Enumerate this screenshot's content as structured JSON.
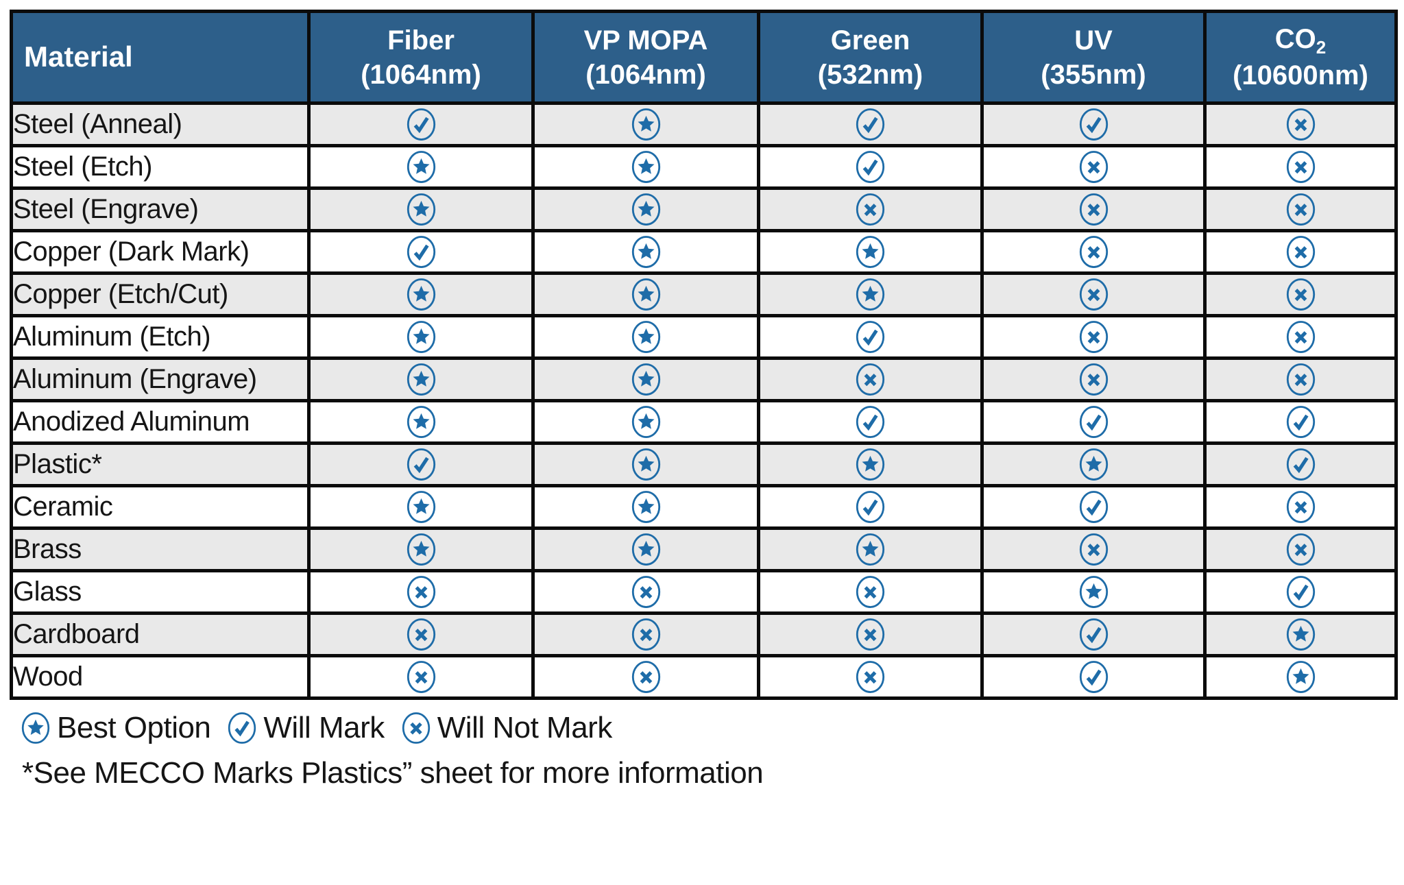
{
  "colors": {
    "header_bg": "#2D5F8A",
    "icon_blue": "#1E6CA8",
    "row_alt_bg": "#E9E9E9",
    "row_bg": "#FFFFFF",
    "border": "#0B0B0B",
    "header_text": "#FFFFFF",
    "body_text": "#151515"
  },
  "table": {
    "material_header": "Material",
    "columns": [
      {
        "id": "fiber",
        "name": "Fiber",
        "subscript": "",
        "wavelength": "(1064nm)"
      },
      {
        "id": "vp-mopa",
        "name": "VP MOPA",
        "subscript": "",
        "wavelength": "(1064nm)"
      },
      {
        "id": "green",
        "name": "Green",
        "subscript": "",
        "wavelength": "(532nm)"
      },
      {
        "id": "uv",
        "name": "UV",
        "subscript": "",
        "wavelength": "(355nm)"
      },
      {
        "id": "co2",
        "name": "CO",
        "subscript": "2",
        "wavelength": "(10600nm)"
      }
    ],
    "rows": [
      {
        "material": "Steel (Anneal)",
        "marks": [
          "will-mark",
          "best-option",
          "will-mark",
          "will-mark",
          "will-not-mark"
        ]
      },
      {
        "material": "Steel (Etch)",
        "marks": [
          "best-option",
          "best-option",
          "will-mark",
          "will-not-mark",
          "will-not-mark"
        ]
      },
      {
        "material": "Steel (Engrave)",
        "marks": [
          "best-option",
          "best-option",
          "will-not-mark",
          "will-not-mark",
          "will-not-mark"
        ]
      },
      {
        "material": "Copper (Dark Mark)",
        "marks": [
          "will-mark",
          "best-option",
          "best-option",
          "will-not-mark",
          "will-not-mark"
        ]
      },
      {
        "material": "Copper (Etch/Cut)",
        "marks": [
          "best-option",
          "best-option",
          "best-option",
          "will-not-mark",
          "will-not-mark"
        ]
      },
      {
        "material": "Aluminum (Etch)",
        "marks": [
          "best-option",
          "best-option",
          "will-mark",
          "will-not-mark",
          "will-not-mark"
        ]
      },
      {
        "material": "Aluminum (Engrave)",
        "marks": [
          "best-option",
          "best-option",
          "will-not-mark",
          "will-not-mark",
          "will-not-mark"
        ]
      },
      {
        "material": "Anodized Aluminum",
        "marks": [
          "best-option",
          "best-option",
          "will-mark",
          "will-mark",
          "will-mark"
        ]
      },
      {
        "material": "Plastic*",
        "marks": [
          "will-mark",
          "best-option",
          "best-option",
          "best-option",
          "will-mark"
        ]
      },
      {
        "material": "Ceramic",
        "marks": [
          "best-option",
          "best-option",
          "will-mark",
          "will-mark",
          "will-not-mark"
        ]
      },
      {
        "material": "Brass",
        "marks": [
          "best-option",
          "best-option",
          "best-option",
          "will-not-mark",
          "will-not-mark"
        ]
      },
      {
        "material": "Glass",
        "marks": [
          "will-not-mark",
          "will-not-mark",
          "will-not-mark",
          "best-option",
          "will-mark"
        ]
      },
      {
        "material": "Cardboard",
        "marks": [
          "will-not-mark",
          "will-not-mark",
          "will-not-mark",
          "will-mark",
          "best-option"
        ]
      },
      {
        "material": "Wood",
        "marks": [
          "will-not-mark",
          "will-not-mark",
          "will-not-mark",
          "will-mark",
          "best-option"
        ]
      }
    ]
  },
  "legend": {
    "items": [
      {
        "mark": "best-option",
        "label": "Best Option"
      },
      {
        "mark": "will-mark",
        "label": "Will Mark"
      },
      {
        "mark": "will-not-mark",
        "label": "Will Not Mark"
      }
    ]
  },
  "footnote": "*See MECCO Marks Plastics” sheet for more information",
  "chart_data": {
    "type": "table",
    "title": "Laser marking compatibility by material",
    "columns": [
      "Material",
      "Fiber (1064nm)",
      "VP MOPA (1064nm)",
      "Green (532nm)",
      "UV (355nm)",
      "CO2 (10600nm)"
    ],
    "legend": {
      "best-option": "Best Option",
      "will-mark": "Will Mark",
      "will-not-mark": "Will Not Mark"
    },
    "rows": [
      [
        "Steel (Anneal)",
        "Will Mark",
        "Best Option",
        "Will Mark",
        "Will Mark",
        "Will Not Mark"
      ],
      [
        "Steel (Etch)",
        "Best Option",
        "Best Option",
        "Will Mark",
        "Will Not Mark",
        "Will Not Mark"
      ],
      [
        "Steel (Engrave)",
        "Best Option",
        "Best Option",
        "Will Not Mark",
        "Will Not Mark",
        "Will Not Mark"
      ],
      [
        "Copper (Dark Mark)",
        "Will Mark",
        "Best Option",
        "Best Option",
        "Will Not Mark",
        "Will Not Mark"
      ],
      [
        "Copper (Etch/Cut)",
        "Best Option",
        "Best Option",
        "Best Option",
        "Will Not Mark",
        "Will Not Mark"
      ],
      [
        "Aluminum (Etch)",
        "Best Option",
        "Best Option",
        "Will Mark",
        "Will Not Mark",
        "Will Not Mark"
      ],
      [
        "Aluminum (Engrave)",
        "Best Option",
        "Best Option",
        "Will Not Mark",
        "Will Not Mark",
        "Will Not Mark"
      ],
      [
        "Anodized Aluminum",
        "Best Option",
        "Best Option",
        "Will Mark",
        "Will Mark",
        "Will Mark"
      ],
      [
        "Plastic*",
        "Will Mark",
        "Best Option",
        "Best Option",
        "Best Option",
        "Will Mark"
      ],
      [
        "Ceramic",
        "Best Option",
        "Best Option",
        "Will Mark",
        "Will Mark",
        "Will Not Mark"
      ],
      [
        "Brass",
        "Best Option",
        "Best Option",
        "Best Option",
        "Will Not Mark",
        "Will Not Mark"
      ],
      [
        "Glass",
        "Will Not Mark",
        "Will Not Mark",
        "Will Not Mark",
        "Best Option",
        "Will Mark"
      ],
      [
        "Cardboard",
        "Will Not Mark",
        "Will Not Mark",
        "Will Not Mark",
        "Will Mark",
        "Best Option"
      ],
      [
        "Wood",
        "Will Not Mark",
        "Will Not Mark",
        "Will Not Mark",
        "Will Mark",
        "Best Option"
      ]
    ]
  }
}
